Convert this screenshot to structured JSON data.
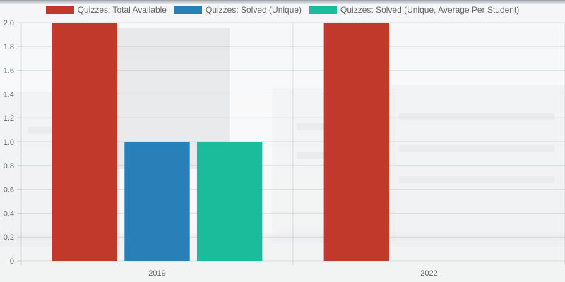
{
  "chart_data": {
    "type": "bar",
    "categories": [
      "2019",
      "2022"
    ],
    "series": [
      {
        "name": "Quizzes: Total Available",
        "values": [
          2,
          2
        ],
        "color": "#c0392b"
      },
      {
        "name": "Quizzes: Solved (Unique)",
        "values": [
          1,
          0
        ],
        "color": "#2980b9"
      },
      {
        "name": "Quizzes: Solved (Unique, Average Per Student)",
        "values": [
          1,
          0
        ],
        "color": "#1abc9c"
      }
    ],
    "title": "",
    "xlabel": "",
    "ylabel": "",
    "ylim": [
      0,
      2
    ],
    "yticks": [
      "0",
      "0.2",
      "0.4",
      "0.6",
      "0.8",
      "1.0",
      "1.2",
      "1.4",
      "1.6",
      "1.8",
      "2.0"
    ],
    "grid": true,
    "legend_position": "top"
  }
}
